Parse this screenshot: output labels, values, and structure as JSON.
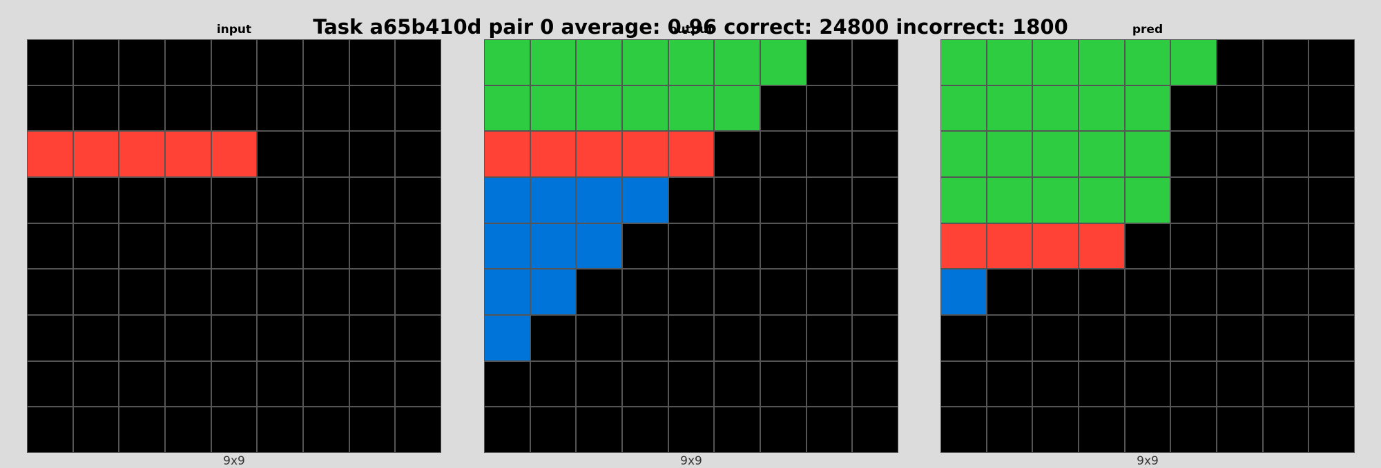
{
  "title": "Task a65b410d pair 0 average: 0.96 correct: 24800 incorrect: 1800",
  "colors": {
    "0": "#000000",
    "1": "#0074d9",
    "2": "#ff4136",
    "3": "#2ecc40"
  },
  "panels": [
    {
      "label": "input",
      "dims": "9x9",
      "grid": [
        [
          0,
          0,
          0,
          0,
          0,
          0,
          0,
          0,
          0
        ],
        [
          0,
          0,
          0,
          0,
          0,
          0,
          0,
          0,
          0
        ],
        [
          2,
          2,
          2,
          2,
          2,
          0,
          0,
          0,
          0
        ],
        [
          0,
          0,
          0,
          0,
          0,
          0,
          0,
          0,
          0
        ],
        [
          0,
          0,
          0,
          0,
          0,
          0,
          0,
          0,
          0
        ],
        [
          0,
          0,
          0,
          0,
          0,
          0,
          0,
          0,
          0
        ],
        [
          0,
          0,
          0,
          0,
          0,
          0,
          0,
          0,
          0
        ],
        [
          0,
          0,
          0,
          0,
          0,
          0,
          0,
          0,
          0
        ],
        [
          0,
          0,
          0,
          0,
          0,
          0,
          0,
          0,
          0
        ]
      ]
    },
    {
      "label": "output",
      "dims": "9x9",
      "grid": [
        [
          3,
          3,
          3,
          3,
          3,
          3,
          3,
          0,
          0
        ],
        [
          3,
          3,
          3,
          3,
          3,
          3,
          0,
          0,
          0
        ],
        [
          2,
          2,
          2,
          2,
          2,
          0,
          0,
          0,
          0
        ],
        [
          1,
          1,
          1,
          1,
          0,
          0,
          0,
          0,
          0
        ],
        [
          1,
          1,
          1,
          0,
          0,
          0,
          0,
          0,
          0
        ],
        [
          1,
          1,
          0,
          0,
          0,
          0,
          0,
          0,
          0
        ],
        [
          1,
          0,
          0,
          0,
          0,
          0,
          0,
          0,
          0
        ],
        [
          0,
          0,
          0,
          0,
          0,
          0,
          0,
          0,
          0
        ],
        [
          0,
          0,
          0,
          0,
          0,
          0,
          0,
          0,
          0
        ]
      ]
    },
    {
      "label": "pred",
      "dims": "9x9",
      "grid": [
        [
          3,
          3,
          3,
          3,
          3,
          3,
          0,
          0,
          0
        ],
        [
          3,
          3,
          3,
          3,
          3,
          0,
          0,
          0,
          0
        ],
        [
          3,
          3,
          3,
          3,
          3,
          0,
          0,
          0,
          0
        ],
        [
          3,
          3,
          3,
          3,
          3,
          0,
          0,
          0,
          0
        ],
        [
          2,
          2,
          2,
          2,
          0,
          0,
          0,
          0,
          0
        ],
        [
          1,
          0,
          0,
          0,
          0,
          0,
          0,
          0,
          0
        ],
        [
          0,
          0,
          0,
          0,
          0,
          0,
          0,
          0,
          0
        ],
        [
          0,
          0,
          0,
          0,
          0,
          0,
          0,
          0,
          0
        ],
        [
          0,
          0,
          0,
          0,
          0,
          0,
          0,
          0,
          0
        ]
      ]
    }
  ]
}
